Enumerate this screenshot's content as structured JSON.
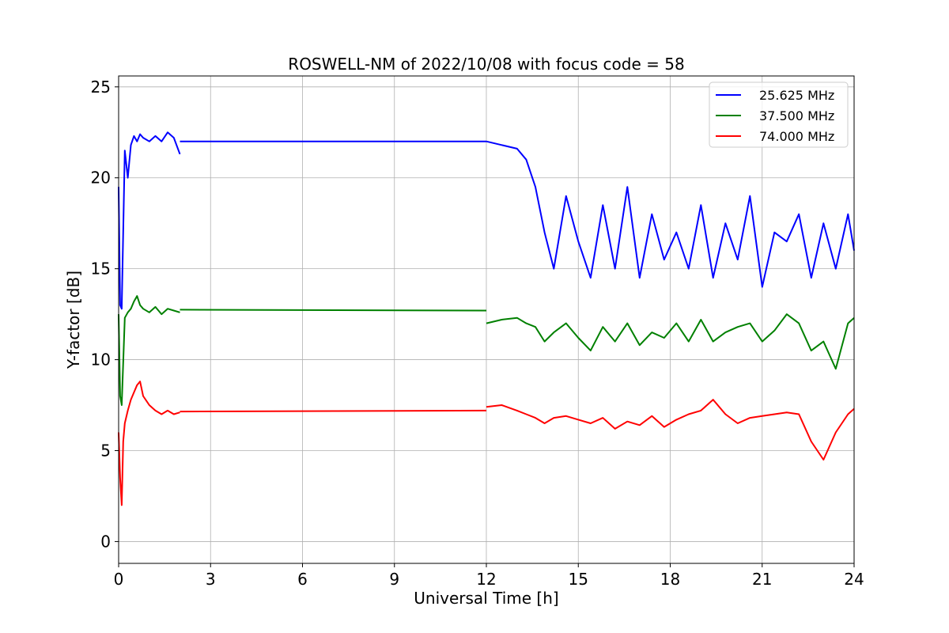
{
  "chart_data": {
    "type": "line",
    "title": "ROSWELL-NM of 2022/10/08 with focus code = 58",
    "xlabel": "Universal Time [h]",
    "ylabel": "Y-factor [dB]",
    "xlim": [
      0,
      24
    ],
    "ylim": [
      -1.2,
      25.6
    ],
    "xticks": [
      0,
      3,
      6,
      9,
      12,
      15,
      18,
      21,
      24
    ],
    "yticks": [
      0,
      5,
      10,
      15,
      20,
      25
    ],
    "grid": true,
    "legend_position": "top-right",
    "series": [
      {
        "name": "25.625 MHz",
        "color": "#0000ff",
        "segments": [
          {
            "x": [
              0.0,
              0.05,
              0.1,
              0.2,
              0.3,
              0.4,
              0.5,
              0.6,
              0.7,
              0.8,
              1.0,
              1.2,
              1.4,
              1.6,
              1.8,
              2.0
            ],
            "y": [
              19.5,
              13.0,
              12.8,
              21.5,
              20.0,
              21.8,
              22.3,
              22.0,
              22.4,
              22.2,
              22.0,
              22.3,
              22.0,
              22.5,
              22.2,
              21.3
            ]
          },
          {
            "x": [
              2.0,
              12.0
            ],
            "y": [
              22.0,
              22.0
            ]
          },
          {
            "x": [
              12.0,
              12.5,
              13.0,
              13.3,
              13.6,
              13.9,
              14.2,
              14.6,
              15.0,
              15.4,
              15.8,
              16.2,
              16.6,
              17.0,
              17.4,
              17.8,
              18.2,
              18.6,
              19.0,
              19.4,
              19.8,
              20.2,
              20.6,
              21.0,
              21.4,
              21.8,
              22.2,
              22.6,
              23.0,
              23.4,
              23.8,
              24.0
            ],
            "y": [
              22.0,
              21.8,
              21.6,
              21.0,
              19.5,
              17.0,
              15.0,
              19.0,
              16.5,
              14.5,
              18.5,
              15.0,
              19.5,
              14.5,
              18.0,
              15.5,
              17.0,
              15.0,
              18.5,
              14.5,
              17.5,
              15.5,
              19.0,
              14.0,
              17.0,
              16.5,
              18.0,
              14.5,
              17.5,
              15.0,
              18.0,
              16.0
            ]
          }
        ]
      },
      {
        "name": "37.500 MHz",
        "color": "#008000",
        "segments": [
          {
            "x": [
              0.0,
              0.05,
              0.1,
              0.2,
              0.3,
              0.4,
              0.5,
              0.6,
              0.7,
              0.8,
              1.0,
              1.2,
              1.4,
              1.6,
              1.8,
              2.0
            ],
            "y": [
              12.5,
              8.0,
              7.5,
              12.3,
              12.6,
              12.8,
              13.2,
              13.5,
              13.0,
              12.8,
              12.6,
              12.9,
              12.5,
              12.8,
              12.7,
              12.6
            ]
          },
          {
            "x": [
              2.0,
              12.0
            ],
            "y": [
              12.75,
              12.7
            ]
          },
          {
            "x": [
              12.0,
              12.5,
              13.0,
              13.3,
              13.6,
              13.9,
              14.2,
              14.6,
              15.0,
              15.4,
              15.8,
              16.2,
              16.6,
              17.0,
              17.4,
              17.8,
              18.2,
              18.6,
              19.0,
              19.4,
              19.8,
              20.2,
              20.6,
              21.0,
              21.4,
              21.8,
              22.2,
              22.6,
              23.0,
              23.4,
              23.8,
              24.0
            ],
            "y": [
              12.0,
              12.2,
              12.3,
              12.0,
              11.8,
              11.0,
              11.5,
              12.0,
              11.2,
              10.5,
              11.8,
              11.0,
              12.0,
              10.8,
              11.5,
              11.2,
              12.0,
              11.0,
              12.2,
              11.0,
              11.5,
              11.8,
              12.0,
              11.0,
              11.6,
              12.5,
              12.0,
              10.5,
              11.0,
              9.5,
              12.0,
              12.3
            ]
          }
        ]
      },
      {
        "name": "74.000 MHz",
        "color": "#ff0000",
        "segments": [
          {
            "x": [
              0.0,
              0.05,
              0.1,
              0.15,
              0.2,
              0.3,
              0.4,
              0.5,
              0.6,
              0.7,
              0.8,
              1.0,
              1.2,
              1.4,
              1.6,
              1.8,
              2.0
            ],
            "y": [
              6.0,
              3.5,
              2.0,
              5.5,
              6.5,
              7.2,
              7.8,
              8.2,
              8.6,
              8.8,
              8.0,
              7.5,
              7.2,
              7.0,
              7.2,
              7.0,
              7.1
            ]
          },
          {
            "x": [
              2.0,
              12.0
            ],
            "y": [
              7.15,
              7.2
            ]
          },
          {
            "x": [
              12.0,
              12.5,
              13.0,
              13.3,
              13.6,
              13.9,
              14.2,
              14.6,
              15.0,
              15.4,
              15.8,
              16.2,
              16.6,
              17.0,
              17.4,
              17.8,
              18.2,
              18.6,
              19.0,
              19.4,
              19.8,
              20.2,
              20.6,
              21.0,
              21.4,
              21.8,
              22.2,
              22.6,
              23.0,
              23.4,
              23.8,
              24.0
            ],
            "y": [
              7.4,
              7.5,
              7.2,
              7.0,
              6.8,
              6.5,
              6.8,
              6.9,
              6.7,
              6.5,
              6.8,
              6.2,
              6.6,
              6.4,
              6.9,
              6.3,
              6.7,
              7.0,
              7.2,
              7.8,
              7.0,
              6.5,
              6.8,
              6.9,
              7.0,
              7.1,
              7.0,
              5.5,
              4.5,
              6.0,
              7.0,
              7.3
            ]
          }
        ]
      }
    ]
  }
}
